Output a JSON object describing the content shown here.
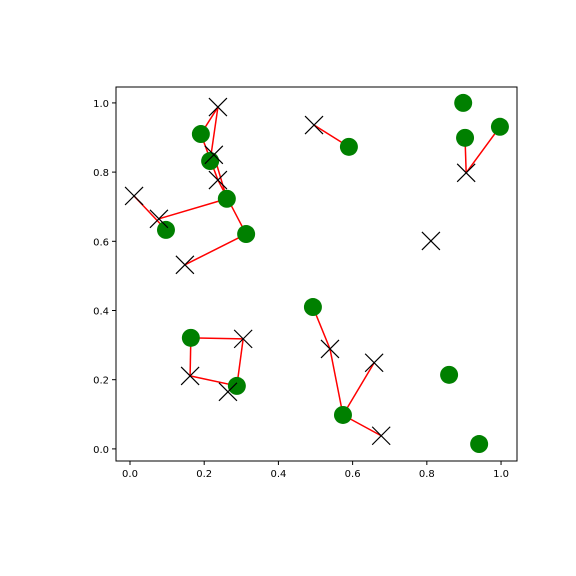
{
  "chart_data": {
    "type": "scatter",
    "xlim": [
      -0.0377,
      1.043
    ],
    "ylim": [
      -0.035,
      1.046
    ],
    "xticks": [
      {
        "value": 0,
        "label": "0.0"
      },
      {
        "value": 0.2,
        "label": "0.2"
      },
      {
        "value": 0.4,
        "label": "0.4"
      },
      {
        "value": 0.6,
        "label": "0.6"
      },
      {
        "value": 0.8,
        "label": "0.8"
      },
      {
        "value": 1,
        "label": "1.0"
      }
    ],
    "yticks": [
      {
        "value": 0,
        "label": "0.0"
      },
      {
        "value": 0.2,
        "label": "0.2"
      },
      {
        "value": 0.4,
        "label": "0.4"
      },
      {
        "value": 0.6,
        "label": "0.6"
      },
      {
        "value": 0.8,
        "label": "0.8"
      },
      {
        "value": 1,
        "label": "1.0"
      }
    ],
    "series": [
      {
        "marker": "circle",
        "color": "green",
        "x": [
          0.898,
          0.903,
          0.997,
          0.59,
          0.191,
          0.216,
          0.261,
          0.313,
          0.097,
          0.493,
          0.164,
          0.288,
          0.574,
          0.86,
          0.941
        ],
        "values": [
          1.0,
          0.899,
          0.931,
          0.873,
          0.91,
          0.832,
          0.723,
          0.621,
          0.633,
          0.41,
          0.321,
          0.182,
          0.098,
          0.214,
          0.014
        ]
      },
      {
        "marker": "x",
        "color": "black",
        "x": [
          0.237,
          0.496,
          0.226,
          0.237,
          0.011,
          0.078,
          0.148,
          0.906,
          0.811,
          0.539,
          0.658,
          0.677,
          0.305,
          0.162,
          0.264
        ],
        "values": [
          0.988,
          0.936,
          0.85,
          0.777,
          0.731,
          0.665,
          0.532,
          0.798,
          0.601,
          0.289,
          0.249,
          0.038,
          0.318,
          0.211,
          0.165
        ]
      }
    ],
    "link_color": "red",
    "links": [
      [
        1,
        7
      ],
      [
        2,
        7
      ],
      [
        3,
        1
      ],
      [
        4,
        0
      ],
      [
        5,
        0
      ],
      [
        4,
        3
      ],
      [
        6,
        2
      ],
      [
        7,
        3
      ],
      [
        7,
        6
      ],
      [
        6,
        5
      ],
      [
        8,
        4
      ],
      [
        9,
        9
      ],
      [
        12,
        9
      ],
      [
        12,
        10
      ],
      [
        12,
        11
      ],
      [
        10,
        12
      ],
      [
        11,
        12
      ],
      [
        10,
        13
      ],
      [
        11,
        13
      ]
    ]
  }
}
